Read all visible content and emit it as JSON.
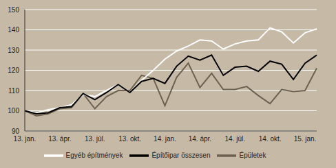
{
  "chart_data": {
    "type": "line",
    "categories": [
      "13. jan.",
      null,
      null,
      "13. ápr.",
      null,
      null,
      "13. júl.",
      null,
      null,
      "13. okt.",
      null,
      null,
      "14. jan.",
      null,
      null,
      "14. ápr.",
      null,
      null,
      "14. júl.",
      null,
      null,
      "14. okt.",
      null,
      null,
      "15. jan.",
      null
    ],
    "series": [
      {
        "name": "Épületek",
        "color": "#6e6150",
        "values": [
          100,
          97.5,
          98.5,
          101,
          101.5,
          108.5,
          101,
          107,
          110,
          110,
          117.5,
          116,
          102.5,
          116.5,
          123.5,
          111.5,
          118.5,
          110.5,
          110.5,
          112,
          107.5,
          103.5,
          110.5,
          109.5,
          110,
          121
        ]
      },
      {
        "name": "Egyéb építmények",
        "color": "#ffffff",
        "values": [
          100,
          99,
          100.5,
          101.5,
          103,
          108,
          107,
          110,
          113,
          109,
          115,
          120,
          125.5,
          129.5,
          132,
          135,
          134.5,
          130.5,
          133,
          134.5,
          135,
          141,
          139,
          133.5,
          138.5,
          140.5
        ]
      },
      {
        "name": "Építőipar összesen",
        "color": "#000000",
        "values": [
          100,
          98.5,
          99,
          101.5,
          102,
          108.5,
          105.5,
          109,
          113,
          109,
          114.5,
          116,
          113.5,
          122,
          127,
          125,
          127.5,
          117.5,
          121.5,
          122,
          119.5,
          124.5,
          123,
          115.5,
          123.5,
          127.5
        ]
      }
    ],
    "ylim": [
      90,
      150
    ],
    "yticks": [
      90,
      100,
      110,
      120,
      130,
      140,
      150
    ],
    "grid": true,
    "legend": "bottom"
  }
}
